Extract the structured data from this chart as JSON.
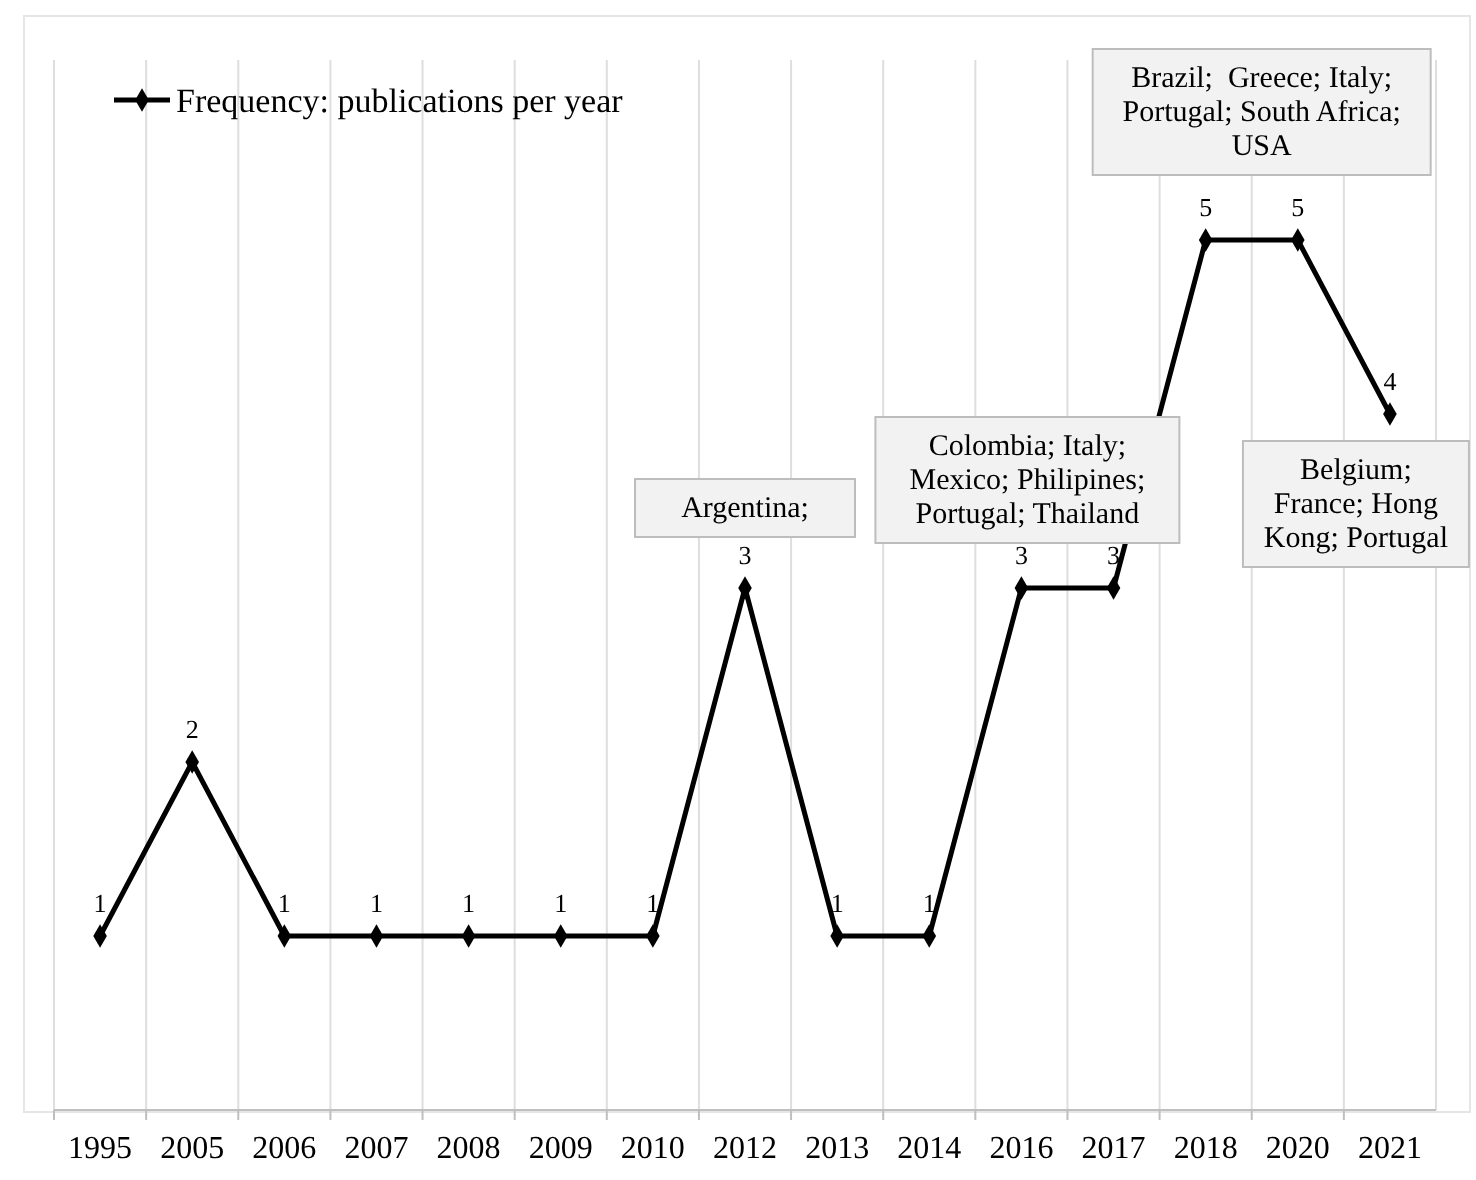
{
  "chart_data": {
    "type": "line",
    "categories": [
      "1995",
      "2005",
      "2006",
      "2007",
      "2008",
      "2009",
      "2010",
      "2012",
      "2013",
      "2014",
      "2016",
      "2017",
      "2018",
      "2020",
      "2021"
    ],
    "series": [
      {
        "name": "Frequency: publications per year",
        "color": "#000000",
        "values": [
          1,
          2,
          1,
          1,
          1,
          1,
          1,
          3,
          1,
          1,
          3,
          3,
          5,
          5,
          4
        ]
      }
    ],
    "data_labels": true,
    "marker": "diamond",
    "line_style": "solid",
    "grid": "x",
    "legend": "top left",
    "tick_labels": "x",
    "annotations": [
      {
        "text": "Argentina;",
        "x": "2012",
        "y": 3
      },
      {
        "text": "Colombia; Italy; Mexico; Philipines; Portugal; Thailand",
        "x": "2016",
        "y": 3
      },
      {
        "text": "Brazil;  Greece; Italy; Portugal; South Africa; USA",
        "x": "2018",
        "y": 5
      },
      {
        "text": "Belgium; France; Hong Kong; Portugal",
        "x": "2021",
        "y": 4
      }
    ]
  }
}
